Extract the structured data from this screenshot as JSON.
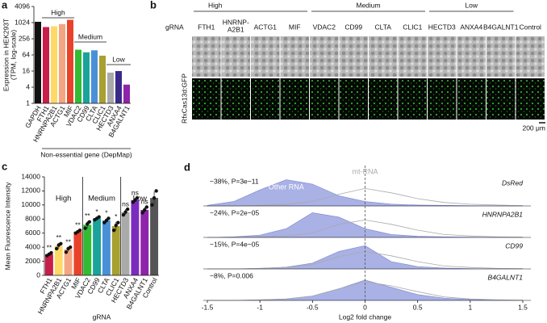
{
  "chart_data": [
    {
      "type": "bar",
      "panel": "a",
      "log_scale": true,
      "ylabel": [
        "Expression in HEK293T",
        "(TPM, log-scale)"
      ],
      "categories": [
        "GAPDH",
        "FTH1",
        "HNRNPA2B1",
        "ACTG1",
        "MIF",
        "VDAC2",
        "CD99",
        "CLTA",
        "CLIC1",
        "HECTD3",
        "ANXA4",
        "B4GALNT1"
      ],
      "values": [
        1100,
        700,
        750,
        900,
        1300,
        100,
        80,
        95,
        60,
        14,
        16,
        5
      ],
      "colors": [
        "#111111",
        "#c81e4a",
        "#ffd966",
        "#f4a582",
        "#e8432a",
        "#33bb33",
        "#1aa39a",
        "#4a90d9",
        "#a8a030",
        "#aaaaaa",
        "#3a2a8a",
        "#8e24aa"
      ],
      "ylim": [
        1,
        4096
      ],
      "yticks": [
        1,
        4,
        16,
        64,
        256,
        1024,
        4096
      ],
      "group_labels": [
        "High",
        "Medium",
        "Low"
      ],
      "footer": "Non-essential gene (DepMap)"
    },
    {
      "type": "bar_points",
      "panel": "c",
      "ylabel": "Mean Fluorescence Intensity",
      "xlabel": "gRNA",
      "categories": [
        "FTH1",
        "HNRNPA2B1",
        "ACTG1",
        "MIF",
        "VDAC2",
        "CD99",
        "CLTA",
        "CLIC1",
        "HECTD3",
        "ANXA4",
        "B4GALNT1",
        "Control"
      ],
      "values": [
        3000,
        4200,
        3700,
        6200,
        7200,
        8100,
        7800,
        7000,
        9000,
        10700,
        9300,
        11000
      ],
      "errors": [
        200,
        400,
        300,
        200,
        500,
        200,
        300,
        600,
        400,
        300,
        400,
        900
      ],
      "points": [
        [
          2800,
          3000,
          3200
        ],
        [
          3800,
          4300,
          4500
        ],
        [
          3300,
          3800,
          4000
        ],
        [
          6000,
          6200,
          6400
        ],
        [
          6700,
          7300,
          7600
        ],
        [
          7900,
          8100,
          8300
        ],
        [
          7500,
          7800,
          8100
        ],
        [
          6400,
          7100,
          7500
        ],
        [
          8600,
          9000,
          9400
        ],
        [
          10400,
          10700,
          11000
        ],
        [
          8900,
          9300,
          9700
        ],
        [
          10000,
          11000,
          12000
        ]
      ],
      "significance": [
        "**",
        "**",
        "**",
        "**",
        "**",
        "*",
        "*",
        "*",
        "ns",
        "ns",
        "ns",
        null
      ],
      "colors": [
        "#c81e4a",
        "#ffd966",
        "#f4a582",
        "#e8432a",
        "#33bb33",
        "#1aa39a",
        "#4a90d9",
        "#a8a030",
        "#aaaaaa",
        "#7b2cbf",
        "#8e24aa",
        "#555555"
      ],
      "ylim": [
        0,
        14000
      ],
      "yticks": [
        0,
        2000,
        4000,
        6000,
        8000,
        10000,
        12000,
        14000
      ],
      "group_labels": [
        "High",
        "Medium",
        "Low"
      ]
    },
    {
      "type": "ridge",
      "panel": "d",
      "xlabel": "Log2 fold change",
      "x": [
        -1.5,
        -1.25,
        -1,
        -0.75,
        -0.5,
        -0.25,
        0,
        0.25,
        0.5,
        0.75,
        1,
        1.25,
        1.5
      ],
      "xlim": [
        -1.5,
        1.5
      ],
      "xticks": [
        -1.5,
        -1,
        -0.5,
        0,
        0.5,
        1,
        1.5
      ],
      "rows": [
        {
          "name": "DsRed",
          "annotation": "−38%, P=3e−11",
          "series": [
            {
              "name": "Other RNA",
              "color": "#9aa3e0",
              "values": [
                0.02,
                0.15,
                0.55,
                0.9,
                0.75,
                0.35,
                0.15,
                0.06,
                0.03,
                0.02,
                0.01,
                0,
                0
              ]
            },
            {
              "name": "mt-RNA",
              "color": "#aaaaaa",
              "values": [
                0,
                0,
                0.02,
                0.05,
                0.15,
                0.4,
                0.6,
                0.45,
                0.25,
                0.12,
                0.06,
                0.03,
                0.01
              ]
            }
          ]
        },
        {
          "name": "HNRNPA2B1",
          "annotation": "−24%, P=2e−05",
          "series": [
            {
              "color": "#9aa3e0",
              "values": [
                0,
                0.02,
                0.08,
                0.3,
                0.85,
                0.7,
                0.3,
                0.1,
                0.04,
                0.02,
                0.01,
                0,
                0
              ]
            },
            {
              "color": "#aaaaaa",
              "values": [
                0,
                0,
                0.02,
                0.05,
                0.15,
                0.45,
                0.6,
                0.45,
                0.25,
                0.1,
                0.05,
                0.02,
                0.01
              ]
            }
          ]
        },
        {
          "name": "CD99",
          "annotation": "−15%, P=4e−05",
          "series": [
            {
              "color": "#9aa3e0",
              "values": [
                0,
                0,
                0.02,
                0.06,
                0.2,
                0.6,
                0.8,
                0.25,
                0.08,
                0.03,
                0.01,
                0,
                0
              ]
            },
            {
              "color": "#aaaaaa",
              "values": [
                0,
                0,
                0.02,
                0.05,
                0.15,
                0.42,
                0.6,
                0.45,
                0.25,
                0.1,
                0.05,
                0.02,
                0.01
              ]
            }
          ]
        },
        {
          "name": "B4GALNT1",
          "annotation": "−8%, P=0.006",
          "series": [
            {
              "color": "#9aa3e0",
              "values": [
                0,
                0,
                0.02,
                0.05,
                0.15,
                0.4,
                0.7,
                0.45,
                0.2,
                0.08,
                0.03,
                0.01,
                0
              ]
            },
            {
              "color": "#aaaaaa",
              "values": [
                0,
                0,
                0.02,
                0.05,
                0.15,
                0.4,
                0.65,
                0.5,
                0.3,
                0.12,
                0.05,
                0.02,
                0.01
              ]
            }
          ]
        }
      ]
    }
  ],
  "image_panel": {
    "panel": "b",
    "group_labels": [
      "High",
      "Medium",
      "Low"
    ],
    "column_header": "gRNA",
    "genes": [
      "FTH1",
      [
        "HNRNP-",
        "A2B1"
      ],
      "ACTG1",
      "MIF",
      "VDAC2",
      "CD99",
      "CLTA",
      "CLIC1",
      "HECTD3",
      "ANXA4",
      "B4GALNT1",
      "Control"
    ],
    "row_label": "RfxCas13d:GFP",
    "scale_bar": "200 μm"
  }
}
